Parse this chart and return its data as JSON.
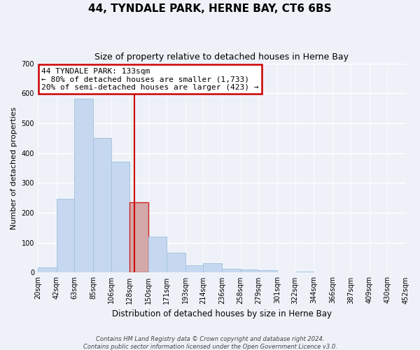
{
  "title": "44, TYNDALE PARK, HERNE BAY, CT6 6BS",
  "subtitle": "Size of property relative to detached houses in Herne Bay",
  "xlabel": "Distribution of detached houses by size in Herne Bay",
  "ylabel": "Number of detached properties",
  "bin_edges": [
    20,
    42,
    63,
    85,
    106,
    128,
    150,
    171,
    193,
    214,
    236,
    258,
    279,
    301,
    322,
    344,
    366,
    387,
    409,
    430,
    452
  ],
  "counts": [
    18,
    247,
    582,
    450,
    372,
    236,
    121,
    67,
    24,
    31,
    13,
    10,
    8,
    0,
    3,
    0,
    2,
    0,
    0,
    0
  ],
  "bar_color": "#c5d8f0",
  "bar_edgecolor": "#a8c4e0",
  "highlight_bin_index": 5,
  "highlight_bar_color": "#d4a8a8",
  "highlight_edgecolor": "#cc2222",
  "vline_x": 133,
  "vline_color": "#cc0000",
  "annotation_title": "44 TYNDALE PARK: 133sqm",
  "annotation_line1": "← 80% of detached houses are smaller (1,733)",
  "annotation_line2": "20% of semi-detached houses are larger (423) →",
  "annotation_box_facecolor": "#ffffff",
  "annotation_box_edgecolor": "#cc0000",
  "ylim": [
    0,
    700
  ],
  "yticks": [
    0,
    100,
    200,
    300,
    400,
    500,
    600,
    700
  ],
  "tick_labels": [
    "20sqm",
    "42sqm",
    "63sqm",
    "85sqm",
    "106sqm",
    "128sqm",
    "150sqm",
    "171sqm",
    "193sqm",
    "214sqm",
    "236sqm",
    "258sqm",
    "279sqm",
    "301sqm",
    "322sqm",
    "344sqm",
    "366sqm",
    "387sqm",
    "409sqm",
    "430sqm",
    "452sqm"
  ],
  "footer1": "Contains HM Land Registry data © Crown copyright and database right 2024.",
  "footer2": "Contains public sector information licensed under the Open Government Licence v3.0.",
  "background_color": "#eef2f8",
  "grid_color": "#ffffff",
  "title_fontsize": 11,
  "subtitle_fontsize": 9,
  "ylabel_fontsize": 8,
  "xlabel_fontsize": 8.5,
  "ann_fontsize": 8,
  "tick_fontsize": 7,
  "footer_fontsize": 6
}
